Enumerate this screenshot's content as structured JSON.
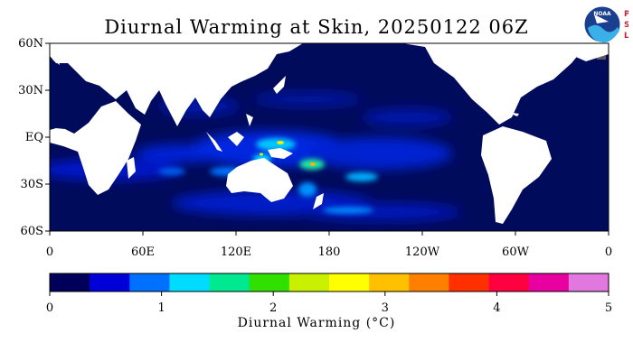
{
  "title": "Diurnal Warming at Skin, 20250122 06Z",
  "logo": {
    "icon": "noaa-logo",
    "text": "NOAA",
    "side_letters": [
      "P",
      "S",
      "L"
    ]
  },
  "map": {
    "type": "global-equirectangular",
    "lon_range": [
      0,
      360
    ],
    "lat_range": [
      -60,
      60
    ],
    "ocean_color": "#000b5c",
    "land_color": "#ffffff",
    "ice_color": "#5a5a5a",
    "lat_labels": [
      {
        "lat": 60,
        "label": "60N"
      },
      {
        "lat": 30,
        "label": "30N"
      },
      {
        "lat": 0,
        "label": "EQ"
      },
      {
        "lat": -30,
        "label": "30S"
      },
      {
        "lat": -60,
        "label": "60S"
      }
    ],
    "lon_labels": [
      {
        "lon": 0,
        "label": "0"
      },
      {
        "lon": 60,
        "label": "60E"
      },
      {
        "lon": 120,
        "label": "120E"
      },
      {
        "lon": 180,
        "label": "180"
      },
      {
        "lon": 240,
        "label": "120W"
      },
      {
        "lon": 300,
        "label": "60W"
      },
      {
        "lon": 360,
        "label": "0"
      }
    ],
    "warm_regions": [
      {
        "name": "maritime-continent",
        "lon": 150,
        "lat": -8,
        "level": 2.5
      },
      {
        "name": "coral-sea",
        "lon": 160,
        "lat": -18,
        "level": 2.2
      },
      {
        "name": "south-pacific-convergence",
        "lon": 190,
        "lat": -22,
        "level": 2.0
      },
      {
        "name": "southern-indian-ocean",
        "lon": 80,
        "lat": -15,
        "level": 1.0
      },
      {
        "name": "tasman-sea",
        "lon": 165,
        "lat": -38,
        "level": 1.3
      }
    ]
  },
  "colorbar": {
    "title": "Diurnal Warming (°C)",
    "min": 0,
    "max": 5,
    "ticks": [
      "0",
      "1",
      "2",
      "3",
      "4",
      "5"
    ],
    "colors": [
      "#00005a",
      "#0000d8",
      "#0070ff",
      "#00dcff",
      "#00e890",
      "#30e000",
      "#c8f000",
      "#ffff00",
      "#ffc000",
      "#ff8000",
      "#ff3000",
      "#ff0040",
      "#e800a0",
      "#e078e0"
    ]
  }
}
